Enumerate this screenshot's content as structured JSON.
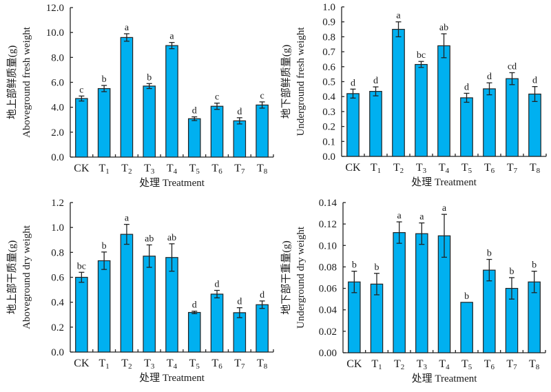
{
  "chart_data": [
    {
      "type": "bar",
      "id": "aboveground-fresh",
      "title": "",
      "xlabel": "处理 Treatment",
      "ylabel_cn": "地上部鲜质量(g)",
      "ylabel_en": "Aboveground fresh weight",
      "categories": [
        {
          "base": "CK",
          "sub": ""
        },
        {
          "base": "T",
          "sub": "1"
        },
        {
          "base": "T",
          "sub": "2"
        },
        {
          "base": "T",
          "sub": "3"
        },
        {
          "base": "T",
          "sub": "4"
        },
        {
          "base": "T",
          "sub": "5"
        },
        {
          "base": "T",
          "sub": "6"
        },
        {
          "base": "T",
          "sub": "7"
        },
        {
          "base": "T",
          "sub": "8"
        }
      ],
      "values": [
        4.7,
        5.5,
        9.6,
        5.7,
        8.95,
        3.08,
        4.08,
        2.91,
        4.18
      ],
      "errors": [
        0.2,
        0.25,
        0.3,
        0.2,
        0.25,
        0.15,
        0.25,
        0.25,
        0.25
      ],
      "significance": [
        "c",
        "b",
        "a",
        "b",
        "a",
        "d",
        "c",
        "d",
        "c"
      ],
      "ylim": [
        0,
        12
      ],
      "yticks": [
        "0.0",
        "2.0",
        "4.0",
        "6.0",
        "8.0",
        "10.0",
        "12.0"
      ],
      "ytick_values": [
        0,
        2,
        4,
        6,
        8,
        10,
        12
      ],
      "grid": false,
      "bar_color": "#00B0F0"
    },
    {
      "type": "bar",
      "id": "underground-fresh",
      "title": "",
      "xlabel": "处理 Treatment",
      "ylabel_cn": "地下部鲜质量(g)",
      "ylabel_en": "Underground fresh weight",
      "categories": [
        {
          "base": "CK",
          "sub": ""
        },
        {
          "base": "T",
          "sub": "1"
        },
        {
          "base": "T",
          "sub": "2"
        },
        {
          "base": "T",
          "sub": "3"
        },
        {
          "base": "T",
          "sub": "4"
        },
        {
          "base": "T",
          "sub": "5"
        },
        {
          "base": "T",
          "sub": "6"
        },
        {
          "base": "T",
          "sub": "7"
        },
        {
          "base": "T",
          "sub": "8"
        }
      ],
      "values": [
        0.42,
        0.435,
        0.85,
        0.615,
        0.74,
        0.392,
        0.452,
        0.52,
        0.417
      ],
      "errors": [
        0.03,
        0.03,
        0.05,
        0.02,
        0.08,
        0.03,
        0.04,
        0.04,
        0.05
      ],
      "significance": [
        "d",
        "d",
        "a",
        "bc",
        "ab",
        "d",
        "d",
        "cd",
        "d"
      ],
      "ylim": [
        0,
        1.0
      ],
      "yticks": [
        "0.0",
        "0.1",
        "0.2",
        "0.3",
        "0.4",
        "0.5",
        "0.6",
        "0.7",
        "0.8",
        "0.9",
        "1.0"
      ],
      "ytick_values": [
        0,
        0.1,
        0.2,
        0.3,
        0.4,
        0.5,
        0.6,
        0.7,
        0.8,
        0.9,
        1.0
      ],
      "grid": false,
      "bar_color": "#00B0F0"
    },
    {
      "type": "bar",
      "id": "aboveground-dry",
      "title": "",
      "xlabel": "处理 Treatment",
      "ylabel_cn": "地上部干质量(g)",
      "ylabel_en": "Aboveground dry weight",
      "categories": [
        {
          "base": "CK",
          "sub": ""
        },
        {
          "base": "T",
          "sub": "1"
        },
        {
          "base": "T",
          "sub": "2"
        },
        {
          "base": "T",
          "sub": "3"
        },
        {
          "base": "T",
          "sub": "4"
        },
        {
          "base": "T",
          "sub": "5"
        },
        {
          "base": "T",
          "sub": "6"
        },
        {
          "base": "T",
          "sub": "7"
        },
        {
          "base": "T",
          "sub": "8"
        }
      ],
      "values": [
        0.6,
        0.733,
        0.945,
        0.77,
        0.759,
        0.318,
        0.465,
        0.316,
        0.38
      ],
      "errors": [
        0.04,
        0.07,
        0.08,
        0.09,
        0.11,
        0.01,
        0.03,
        0.04,
        0.03
      ],
      "significance": [
        "bc",
        "b",
        "a",
        "ab",
        "ab",
        "d",
        "d",
        "d",
        "d"
      ],
      "ylim": [
        0,
        1.2
      ],
      "yticks": [
        "0.0",
        "0.2",
        "0.4",
        "0.6",
        "0.8",
        "1.0",
        "1.2"
      ],
      "ytick_values": [
        0,
        0.2,
        0.4,
        0.6,
        0.8,
        1.0,
        1.2
      ],
      "grid": false,
      "bar_color": "#00B0F0"
    },
    {
      "type": "bar",
      "id": "underground-dry",
      "title": "",
      "xlabel": "处理 Treatment",
      "ylabel_cn": "地下部干重量(g)",
      "ylabel_en": "Underground dry weight",
      "categories": [
        {
          "base": "CK",
          "sub": ""
        },
        {
          "base": "T",
          "sub": "1"
        },
        {
          "base": "T",
          "sub": "2"
        },
        {
          "base": "T",
          "sub": "3"
        },
        {
          "base": "T",
          "sub": "4"
        },
        {
          "base": "T",
          "sub": "5"
        },
        {
          "base": "T",
          "sub": "6"
        },
        {
          "base": "T",
          "sub": "7"
        },
        {
          "base": "T",
          "sub": "8"
        }
      ],
      "values": [
        0.066,
        0.064,
        0.112,
        0.111,
        0.109,
        0.047,
        0.077,
        0.06,
        0.066
      ],
      "errors": [
        0.01,
        0.01,
        0.01,
        0.01,
        0.02,
        0.0,
        0.01,
        0.01,
        0.01
      ],
      "significance": [
        "b",
        "b",
        "a",
        "a",
        "a",
        "b",
        "b",
        "b",
        "b"
      ],
      "ylim": [
        0,
        0.14
      ],
      "yticks": [
        "0.00",
        "0.02",
        "0.04",
        "0.06",
        "0.08",
        "0.10",
        "0.12",
        "0.14"
      ],
      "ytick_values": [
        0,
        0.02,
        0.04,
        0.06,
        0.08,
        0.1,
        0.12,
        0.14
      ],
      "grid": false,
      "bar_color": "#00B0F0"
    }
  ]
}
